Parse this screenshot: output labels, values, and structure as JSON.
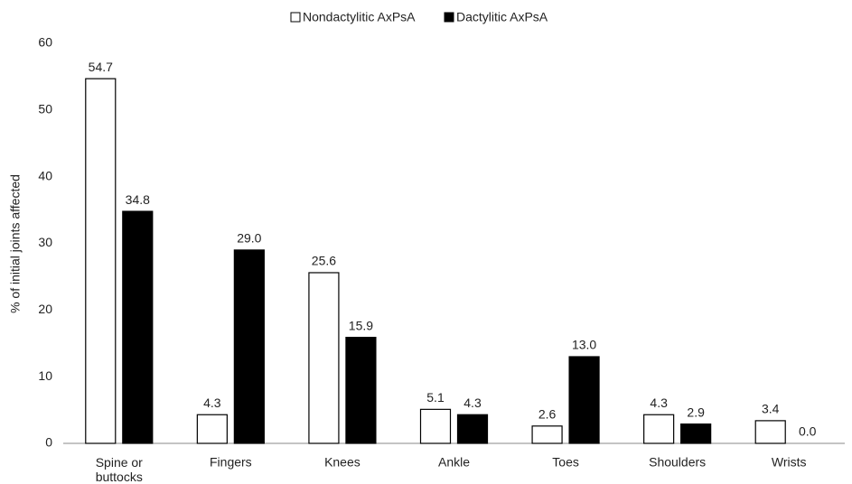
{
  "chart_data": {
    "type": "bar",
    "y_label": "% of initial joints affected",
    "categories": [
      "Spine or buttocks",
      "Fingers",
      "Knees",
      "Ankle",
      "Toes",
      "Shoulders",
      "Wrists"
    ],
    "series": [
      {
        "name": "Nondactylitic AxPsA",
        "color": "#ffffff",
        "values": [
          54.7,
          4.3,
          25.6,
          5.1,
          2.6,
          4.3,
          3.4
        ],
        "value_labels": [
          "54.7",
          "4.3",
          "25.6",
          "5.1",
          "2.6",
          "4.3",
          "3.4"
        ]
      },
      {
        "name": "Dactylitic AxPsA",
        "color": "#000000",
        "values": [
          34.8,
          29.0,
          15.9,
          4.3,
          13.0,
          2.9,
          0.0
        ],
        "value_labels": [
          "34.8",
          "29.0",
          "15.9",
          "4.3",
          "13.0",
          "2.9",
          "0.0"
        ]
      }
    ],
    "ylim": [
      0,
      60
    ],
    "yticks": [
      0,
      10,
      20,
      30,
      40,
      50,
      60
    ],
    "legend": "top"
  }
}
